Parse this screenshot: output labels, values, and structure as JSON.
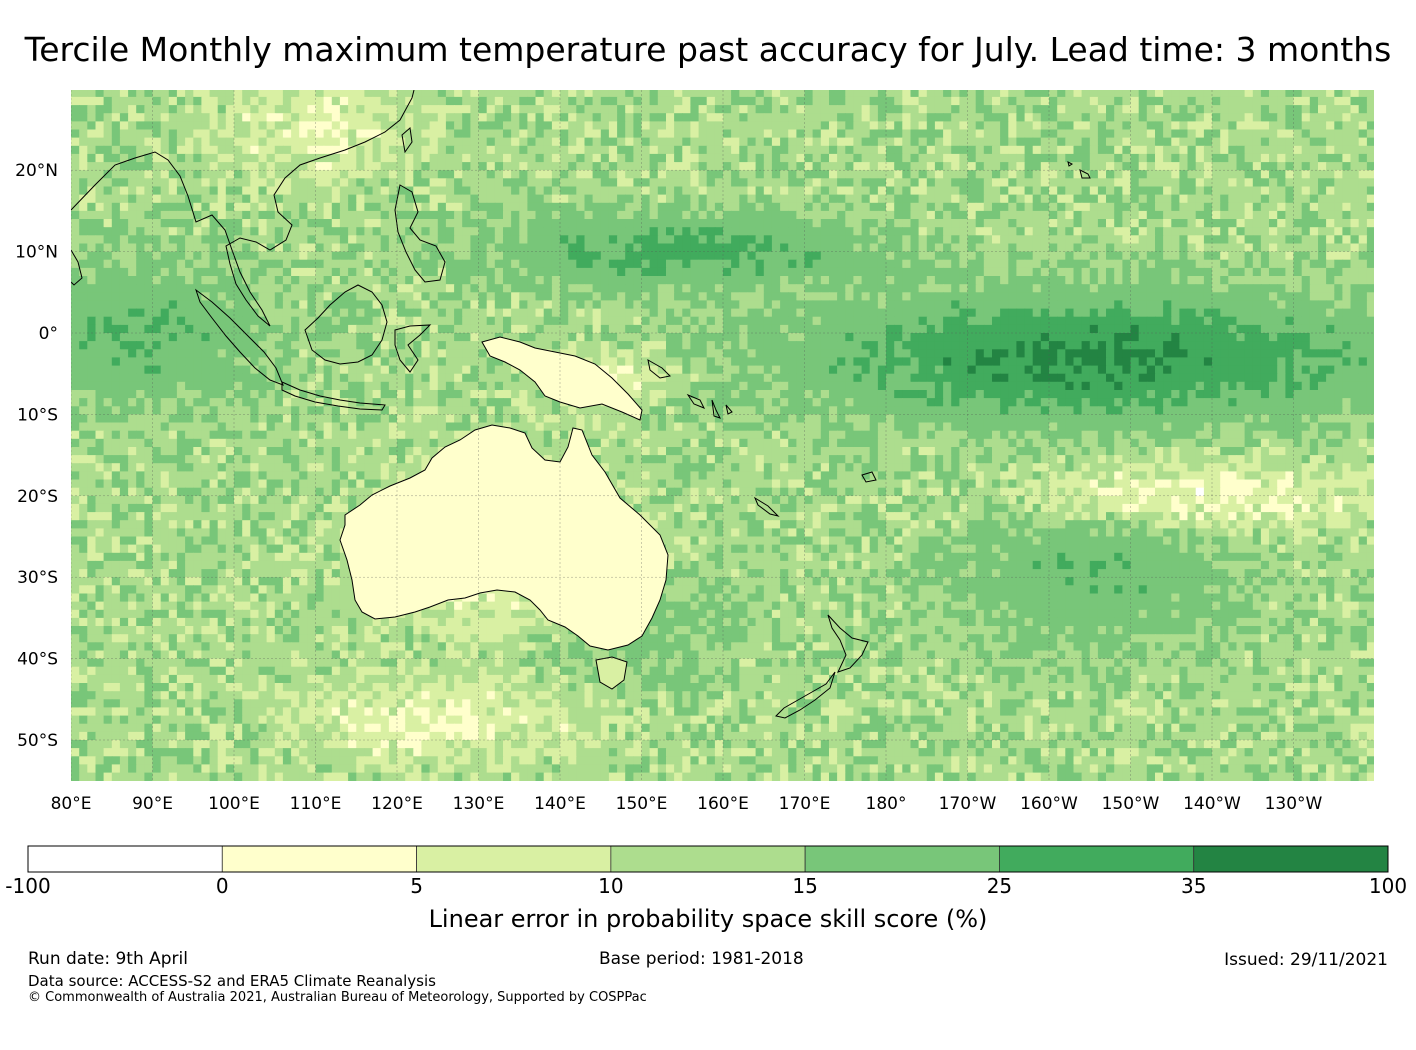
{
  "title": "Tercile Monthly maximum temperature past accuracy for July. Lead time: 3 months",
  "map": {
    "lat_labels": [
      "20°N",
      "10°N",
      "0°",
      "10°S",
      "20°S",
      "30°S",
      "40°S",
      "50°S"
    ],
    "lon_labels": [
      "80°E",
      "90°E",
      "100°E",
      "110°E",
      "120°E",
      "130°E",
      "140°E",
      "150°E",
      "160°E",
      "170°E",
      "180°",
      "170°W",
      "160°W",
      "150°W",
      "140°W",
      "130°W"
    ],
    "lon_range": [
      "80°E",
      "120°W"
    ],
    "lat_range": [
      "55°S",
      "30°N"
    ]
  },
  "colorbar": {
    "title": "Linear error in probability space skill score (%)",
    "ticks": [
      "-100",
      "0",
      "5",
      "10",
      "15",
      "25",
      "35",
      "100"
    ],
    "colors": [
      "#ffffff",
      "#ffffcc",
      "#d9f0a3",
      "#addd8e",
      "#78c679",
      "#41ab5d",
      "#238443"
    ]
  },
  "footer": {
    "run_date": "Run date: 9th April",
    "base_period": "Base period: 1981-2018",
    "issued": "Issued: 29/11/2021",
    "data_source": "Data source: ACCESS-S2 and ERA5 Climate Reanalysis",
    "copyright": "© Commonwealth of Australia 2021, Australian Bureau of Meteorology, Supported by COSPPac"
  }
}
